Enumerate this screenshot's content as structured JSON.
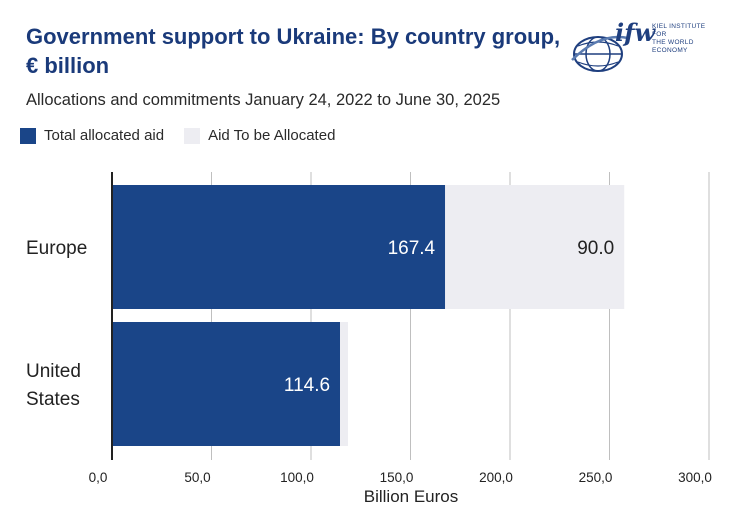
{
  "header": {
    "title": "Government support to Ukraine: By country group, € billion",
    "subtitle": "Allocations and commitments January 24, 2022 to June 30, 2025"
  },
  "logo": {
    "wordmark": "ifw",
    "line1": "KIEL INSTITUTE FOR",
    "line2": "THE WORLD ECONOMY"
  },
  "colors": {
    "allocated": "#1a4588",
    "to_be_allocated": "#ededf2",
    "title": "#1a3a7a",
    "grid": "#bfbfbf"
  },
  "chart_data": {
    "type": "bar",
    "orientation": "horizontal",
    "stacked": true,
    "categories": [
      "Europe",
      "United States"
    ],
    "series": [
      {
        "name": "Total allocated aid",
        "values": [
          167.4,
          114.6
        ],
        "labels": [
          "167.4",
          "114.6"
        ]
      },
      {
        "name": "Aid To be Allocated",
        "values": [
          90.0,
          4.0
        ],
        "labels": [
          "90.0",
          ""
        ]
      }
    ],
    "xlabel": "Billion Euros",
    "xlim": [
      0,
      300
    ],
    "xticks": [
      0,
      50,
      100,
      150,
      200,
      250,
      300
    ],
    "xtick_labels": [
      "0,0",
      "50,0",
      "100,0",
      "150,0",
      "200,0",
      "250,0",
      "300,0"
    ],
    "grid": true,
    "legend_position": "top-left"
  }
}
